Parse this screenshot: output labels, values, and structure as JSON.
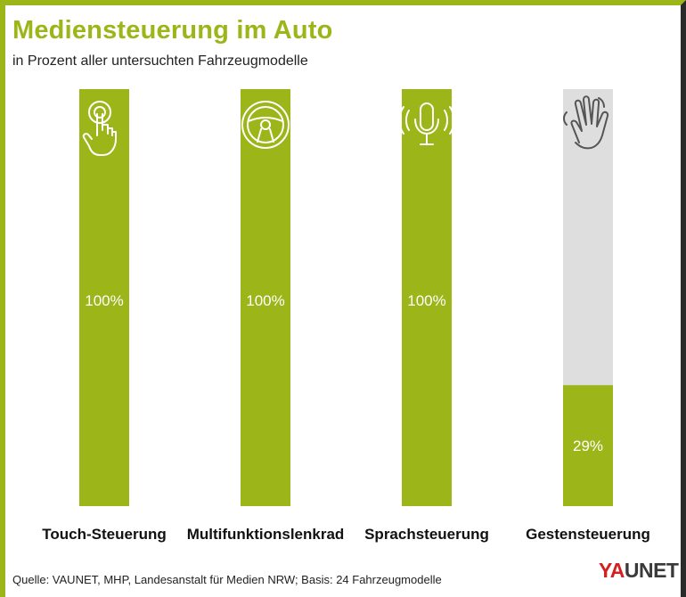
{
  "title": "Mediensteuerung im Auto",
  "subtitle": "in Prozent aller untersuchten Fahrzeugmodelle",
  "source": "Quelle: VAUNET, MHP, Landesanstalt für Medien NRW; Basis: 24 Fahrzeugmodelle",
  "logo": {
    "prefix": "YA",
    "rest": "UNET"
  },
  "colors": {
    "bar": "#9cb518",
    "track": "#dedede",
    "accent": "#d4201e"
  },
  "icons": [
    "touch-hand-icon",
    "steering-wheel-icon",
    "microphone-icon",
    "gesture-hand-icon"
  ],
  "chart_data": {
    "type": "bar",
    "title": "Mediensteuerung im Auto",
    "subtitle": "in Prozent aller untersuchten Fahrzeugmodelle",
    "categories": [
      "Touch-Steuerung",
      "Multifunktionslenkrad",
      "Sprachsteuerung",
      "Gestensteuerung"
    ],
    "values": [
      100,
      100,
      100,
      29
    ],
    "value_labels": [
      "100%",
      "100%",
      "100%",
      "29%"
    ],
    "ylim": [
      0,
      100
    ],
    "grid": false,
    "xlabel": "",
    "ylabel": ""
  }
}
